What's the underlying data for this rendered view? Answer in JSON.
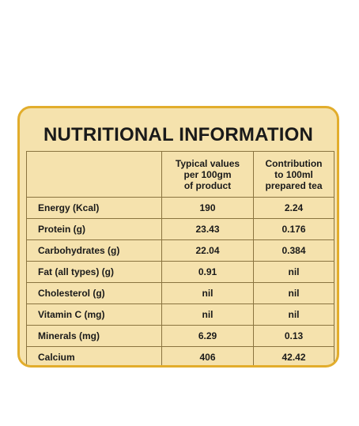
{
  "title": "NUTRITIONAL INFORMATION",
  "columns": {
    "nutrient": "",
    "per_100gm": [
      "Typical values",
      "per 100gm",
      "of product"
    ],
    "per_100ml": [
      "Contribution",
      "to 100ml",
      "prepared tea"
    ]
  },
  "rows": [
    {
      "name": "Energy (Kcal)",
      "per_100gm": "190",
      "per_100ml": "2.24"
    },
    {
      "name": "Protein (g)",
      "per_100gm": "23.43",
      "per_100ml": "0.176"
    },
    {
      "name": "Carbohydrates (g)",
      "per_100gm": "22.04",
      "per_100ml": "0.384"
    },
    {
      "name": "Fat (all types) (g)",
      "per_100gm": "0.91",
      "per_100ml": "nil"
    },
    {
      "name": "Cholesterol (g)",
      "per_100gm": "nil",
      "per_100ml": "nil"
    },
    {
      "name": "Vitamin C (mg)",
      "per_100gm": "nil",
      "per_100ml": "nil"
    },
    {
      "name": "Minerals (mg)",
      "per_100gm": "6.29",
      "per_100ml": "0.13"
    },
    {
      "name": "Calcium",
      "per_100gm": "406",
      "per_100ml": "42.42"
    }
  ],
  "colors": {
    "panel_background": "#f5e2ad",
    "panel_border": "#e2ad2c",
    "grid_line": "#8a7440",
    "text": "#1a1a1a"
  }
}
